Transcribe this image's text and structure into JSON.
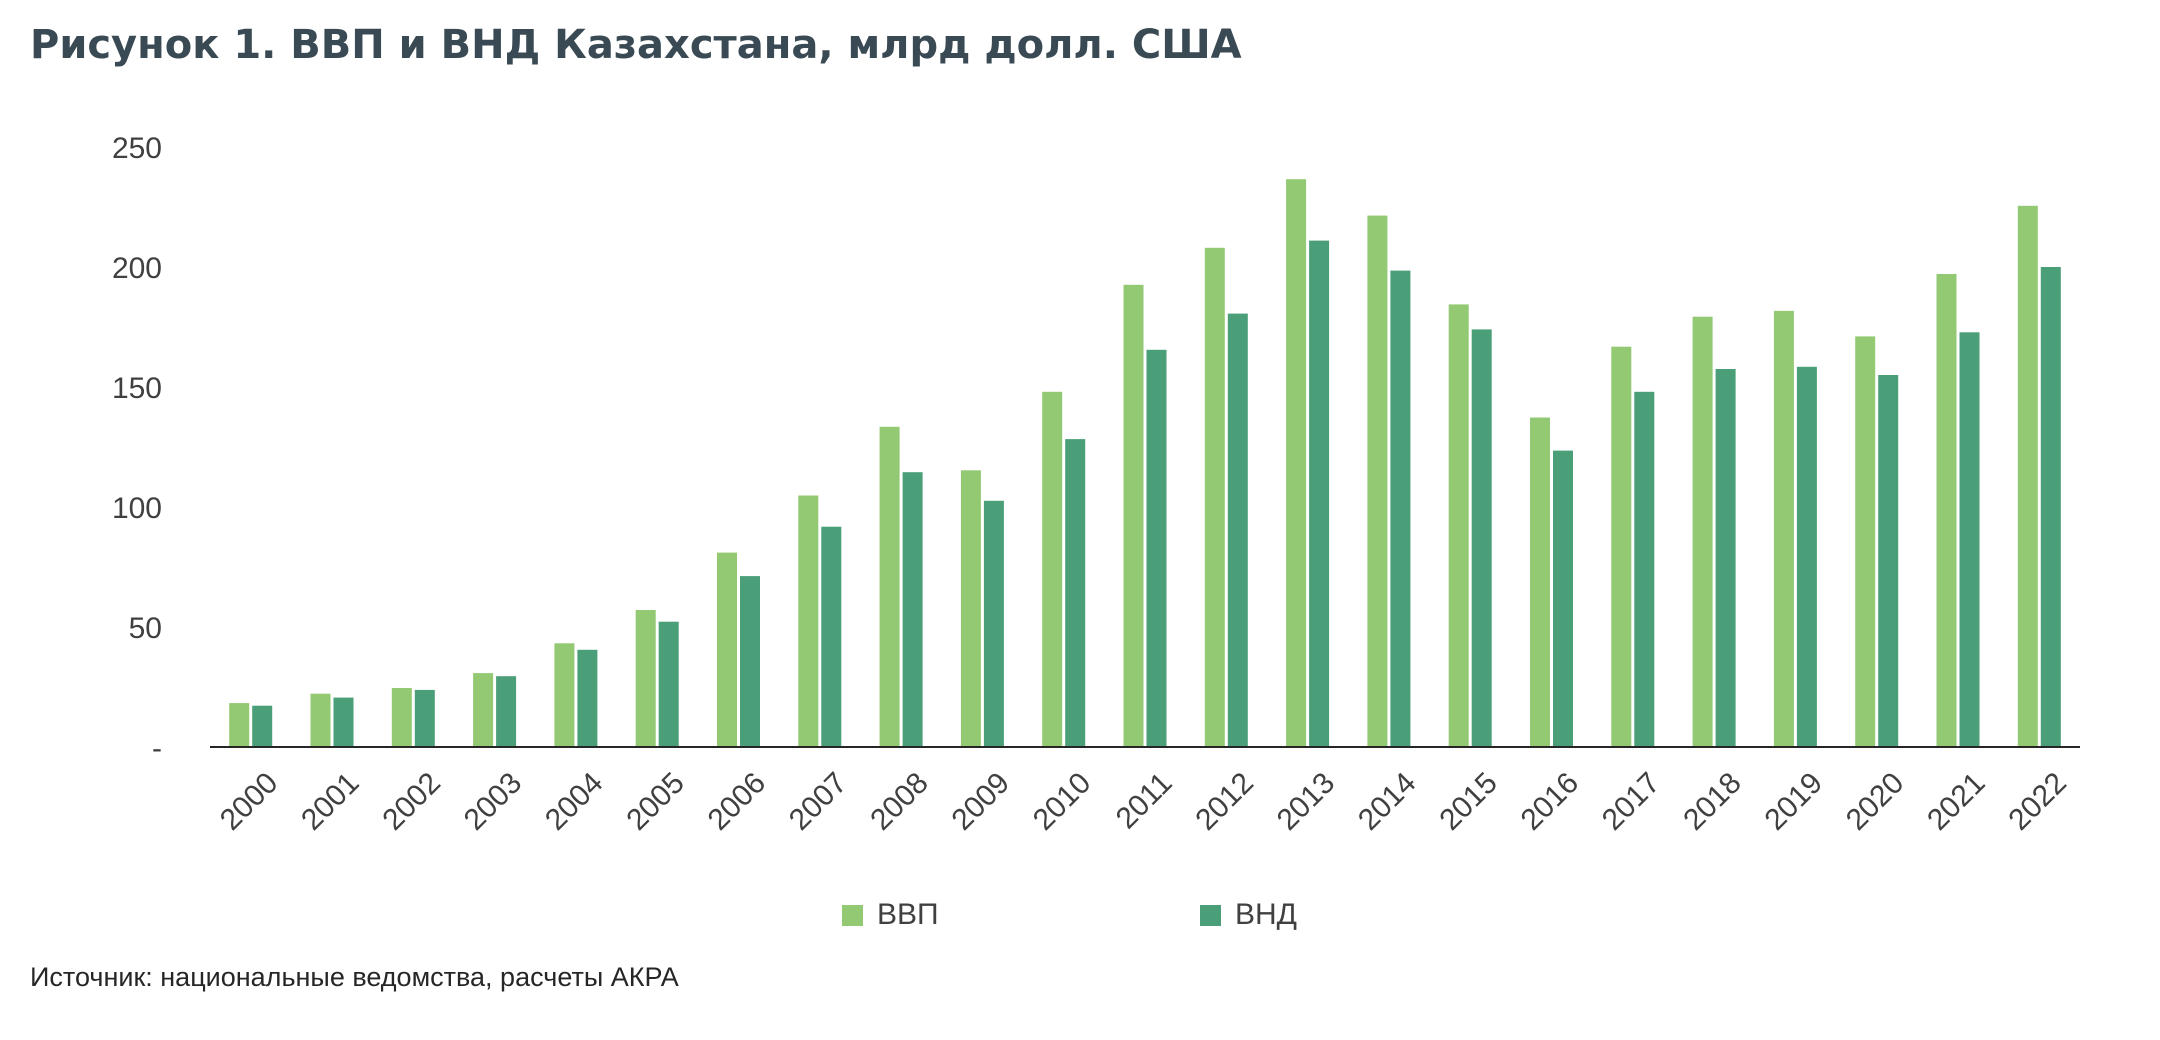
{
  "title": "Рисунок 1. ВВП и ВНД Казахстана, млрд долл. США",
  "source": "Источник: национальные ведомства, расчеты АКРА",
  "chart_data": {
    "type": "bar",
    "title": "Рисунок 1. ВВП и ВНД Казахстана, млрд долл. США",
    "xlabel": "",
    "ylabel": "",
    "ylim": [
      0,
      250
    ],
    "yticks": [
      0,
      50,
      100,
      150,
      200,
      250
    ],
    "ytick_labels": [
      "-",
      "50",
      "100",
      "150",
      "200",
      "250"
    ],
    "grid": false,
    "legend_position": "bottom",
    "categories": [
      "2000",
      "2001",
      "2002",
      "2003",
      "2004",
      "2005",
      "2006",
      "2007",
      "2008",
      "2009",
      "2010",
      "2011",
      "2012",
      "2013",
      "2014",
      "2015",
      "2016",
      "2017",
      "2018",
      "2019",
      "2020",
      "2021",
      "2022"
    ],
    "series": [
      {
        "name": "ВВП",
        "color": "#92c972",
        "values": [
          18.3,
          22.2,
          24.6,
          30.8,
          43.2,
          57.1,
          81.0,
          104.8,
          133.4,
          115.3,
          148.0,
          192.6,
          208.0,
          236.6,
          221.4,
          184.4,
          137.3,
          166.8,
          179.3,
          181.7,
          171.1,
          197.1,
          225.5
        ]
      },
      {
        "name": "ВНД",
        "color": "#4a9e78",
        "values": [
          17.2,
          20.6,
          23.8,
          29.5,
          40.5,
          52.2,
          71.2,
          91.8,
          114.5,
          102.6,
          128.3,
          165.5,
          180.6,
          211.0,
          198.5,
          174.0,
          123.5,
          148.0,
          157.5,
          158.4,
          155.0,
          172.8,
          200.0
        ]
      }
    ]
  }
}
